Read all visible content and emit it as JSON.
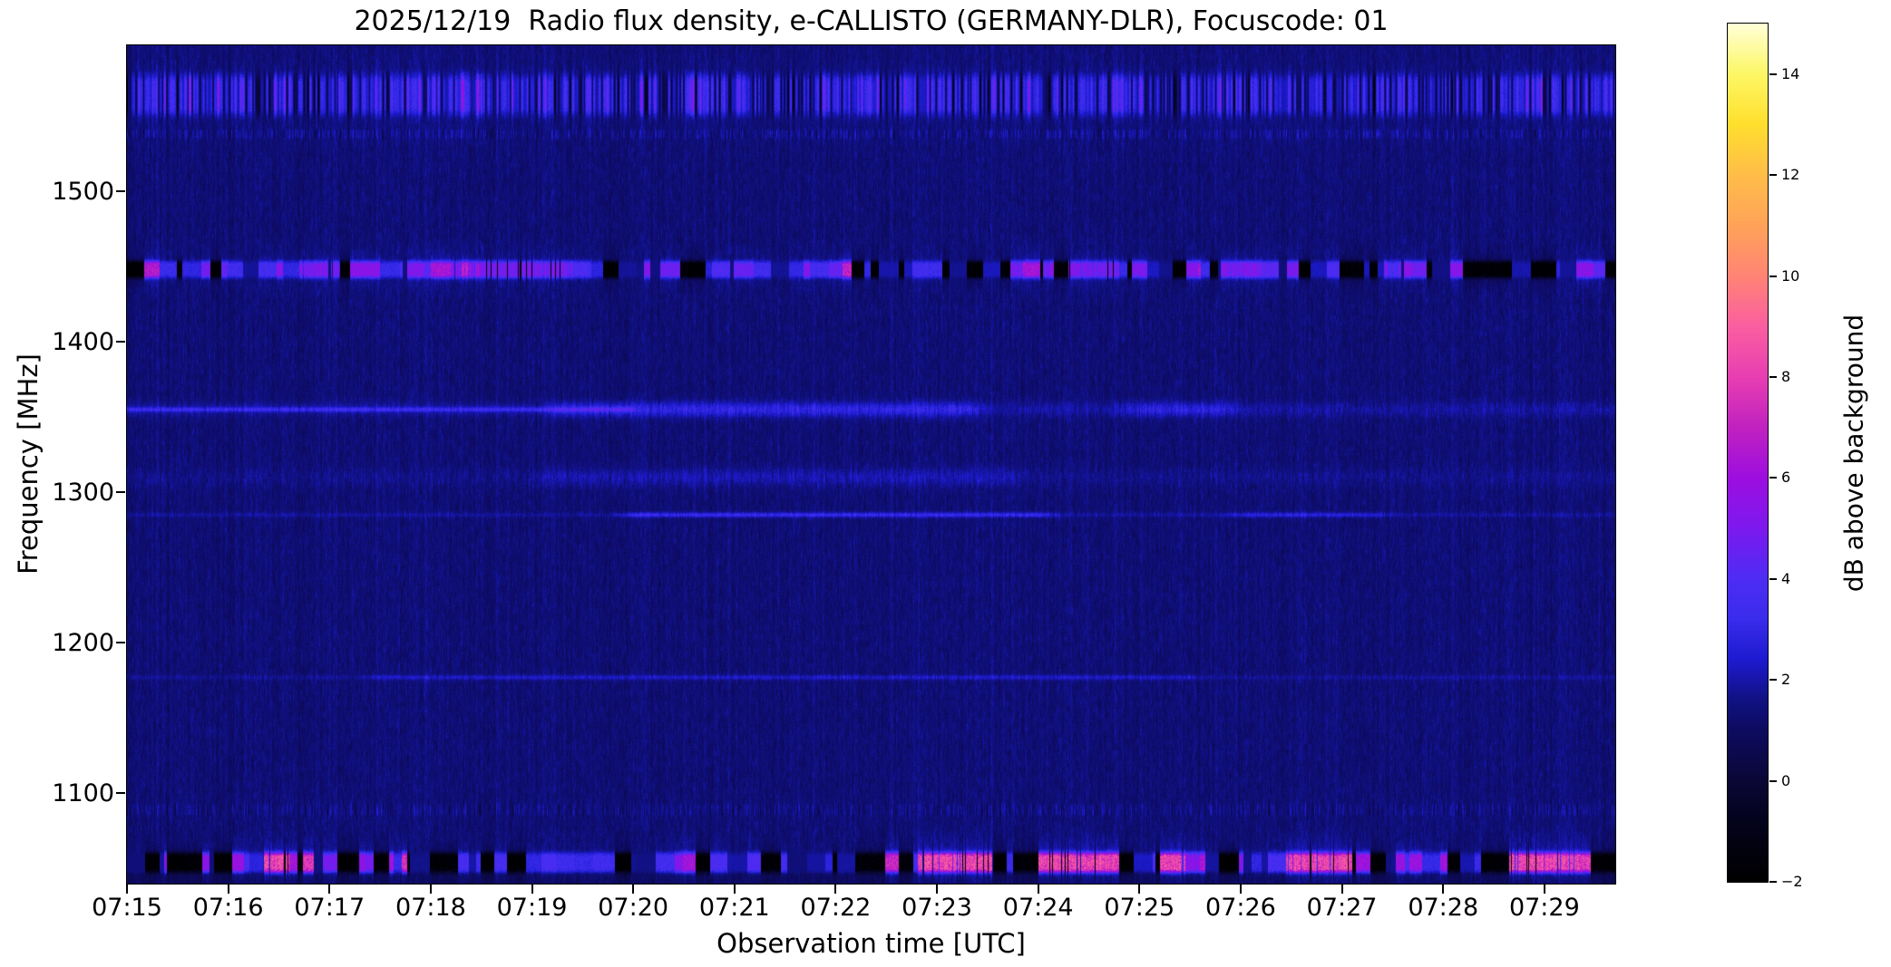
{
  "chart_data": {
    "type": "heatmap",
    "title": "2025/12/19  Radio flux density, e-CALLISTO (GERMANY-DLR), Focuscode: 01",
    "date": "2025/12/19",
    "instrument": "e-CALLISTO (GERMANY-DLR)",
    "focuscode": "01",
    "xlabel": "Observation time [UTC]",
    "ylabel": "Frequency [MHz]",
    "x_ticks": [
      {
        "minute": 15,
        "label": "07:15"
      },
      {
        "minute": 16,
        "label": "07:16"
      },
      {
        "minute": 17,
        "label": "07:17"
      },
      {
        "minute": 18,
        "label": "07:18"
      },
      {
        "minute": 19,
        "label": "07:19"
      },
      {
        "minute": 20,
        "label": "07:20"
      },
      {
        "minute": 21,
        "label": "07:21"
      },
      {
        "minute": 22,
        "label": "07:22"
      },
      {
        "minute": 23,
        "label": "07:23"
      },
      {
        "minute": 24,
        "label": "07:24"
      },
      {
        "minute": 25,
        "label": "07:25"
      },
      {
        "minute": 26,
        "label": "07:26"
      },
      {
        "minute": 27,
        "label": "07:27"
      },
      {
        "minute": 28,
        "label": "07:28"
      },
      {
        "minute": 29,
        "label": "07:29"
      }
    ],
    "y_ticks": [
      1500,
      1400,
      1300,
      1200,
      1100
    ],
    "time_range_min": [
      15,
      29.7
    ],
    "time_range_labels": [
      "07:15:00",
      "07:29:42"
    ],
    "freq_range_mhz": [
      1040,
      1597
    ],
    "background_db": 1.35,
    "bottom_quiet_below_mhz": 1047,
    "colorbar": {
      "label": "dB above background",
      "vmin": -2,
      "vmax": 15,
      "ticks": [
        {
          "value": 14,
          "label": "14"
        },
        {
          "value": 12,
          "label": "12"
        },
        {
          "value": 10,
          "label": "10"
        },
        {
          "value": 8,
          "label": "8"
        },
        {
          "value": 6,
          "label": "6"
        },
        {
          "value": 4,
          "label": "4"
        },
        {
          "value": 2,
          "label": "2"
        },
        {
          "value": 0,
          "label": "0"
        },
        {
          "value": -2,
          "label": "−2"
        }
      ]
    },
    "colormap": {
      "name": "gnuplot2-like",
      "stops": [
        [
          -2,
          "#000000"
        ],
        [
          -0.8,
          "#04031c"
        ],
        [
          0,
          "#0a0736"
        ],
        [
          1,
          "#0d0b60"
        ],
        [
          1.6,
          "#111183"
        ],
        [
          2.4,
          "#1d1bd0"
        ],
        [
          3.2,
          "#3a2ceb"
        ],
        [
          4,
          "#4e2cf3"
        ],
        [
          5,
          "#7d19ee"
        ],
        [
          6,
          "#9d0edf"
        ],
        [
          7,
          "#c122bf"
        ],
        [
          8,
          "#e83fb2"
        ],
        [
          9,
          "#fa5fa0"
        ],
        [
          10,
          "#ff8474"
        ],
        [
          11,
          "#ffa358"
        ],
        [
          12,
          "#ffbd49"
        ],
        [
          13,
          "#ffdf2e"
        ],
        [
          14,
          "#fdf766"
        ],
        [
          15,
          "#ffffd9"
        ]
      ]
    },
    "bands": [
      {
        "type": "streaks",
        "center_mhz": 1564,
        "halfwidth_mhz": 13
      },
      {
        "type": "speckle",
        "center_mhz": 1538,
        "halfwidth_mhz": 3,
        "amp_db": 1.0
      },
      {
        "type": "segments",
        "center_mhz": 1448,
        "halfwidth_mhz": 5.5,
        "dark_fraction": 0.42,
        "bright_db": 5,
        "hot_db": 5.2,
        "hot_zones_min": [
          [
            16.7,
            17.1
          ],
          [
            18.2,
            19.4
          ],
          [
            24.3,
            24.8
          ],
          [
            25.8,
            26.2
          ]
        ]
      },
      {
        "type": "diffuse",
        "center_mhz": 1355,
        "halfwidth_mhz": 5,
        "base_db": 0.55,
        "bumps_min": [
          [
            19.3,
            23.3,
            1.0
          ],
          [
            25.0,
            25.8,
            0.9
          ]
        ],
        "line_min": [
          15,
          20
        ],
        "line_db": 1.4
      },
      {
        "type": "diffuse",
        "center_mhz": 1310,
        "halfwidth_mhz": 6,
        "base_db": 0.3,
        "bumps_min": [
          [
            19.2,
            23.7,
            0.45
          ]
        ]
      },
      {
        "type": "line",
        "center_mhz": 1285,
        "halfwidth_mhz": 1.6,
        "base_db": 0.5,
        "bumps_min": [
          [
            20.0,
            24.0,
            1.3
          ],
          [
            26.0,
            27.3,
            0.9
          ]
        ]
      },
      {
        "type": "line",
        "center_mhz": 1177,
        "halfwidth_mhz": 1.7,
        "base_db": 0.45,
        "bumps_min": [
          [
            17.5,
            25.5,
            0.55
          ]
        ]
      },
      {
        "type": "speckle",
        "center_mhz": 1089,
        "halfwidth_mhz": 4,
        "amp_db": 0.8
      },
      {
        "type": "segments",
        "center_mhz": 1054,
        "halfwidth_mhz": 6.5,
        "dark_fraction": 0.4,
        "bright_db": 6,
        "hot_db": 8.6,
        "hot_zones_min": [
          [
            16.35,
            16.6
          ],
          [
            22.8,
            23.55
          ],
          [
            24.0,
            24.8
          ],
          [
            25.2,
            25.45
          ],
          [
            26.45,
            27.1
          ],
          [
            28.65,
            29.35
          ]
        ]
      }
    ]
  }
}
